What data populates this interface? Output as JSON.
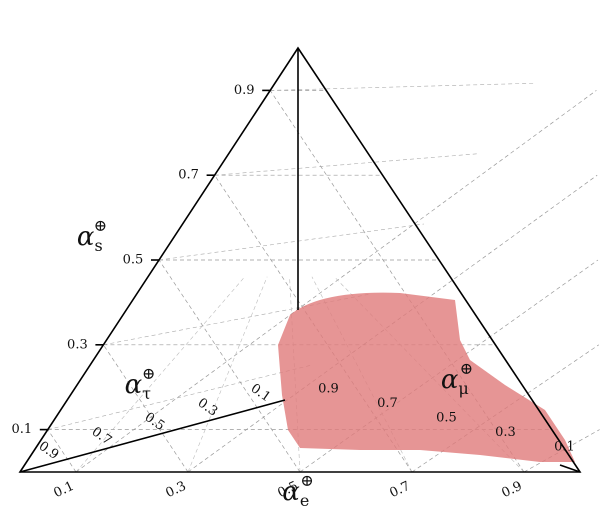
{
  "chart_data": {
    "type": "tetrahedron",
    "axes": [
      {
        "symbol": "α",
        "subscript": "s",
        "superscript": "⊕",
        "ticks": [
          0.1,
          0.3,
          0.5,
          0.7,
          0.9
        ]
      },
      {
        "symbol": "α",
        "subscript": "e",
        "superscript": "⊕",
        "ticks": [
          0.1,
          0.3,
          0.5,
          0.7,
          0.9
        ]
      },
      {
        "symbol": "α",
        "subscript": "τ",
        "superscript": "⊕",
        "ticks": [
          0.9,
          0.7,
          0.5,
          0.3,
          0.1
        ]
      },
      {
        "symbol": "α",
        "subscript": "μ",
        "superscript": "⊕",
        "ticks": [
          0.9,
          0.7,
          0.5,
          0.3,
          0.1
        ]
      }
    ],
    "grid": true,
    "region_color": "#e07a7a"
  }
}
